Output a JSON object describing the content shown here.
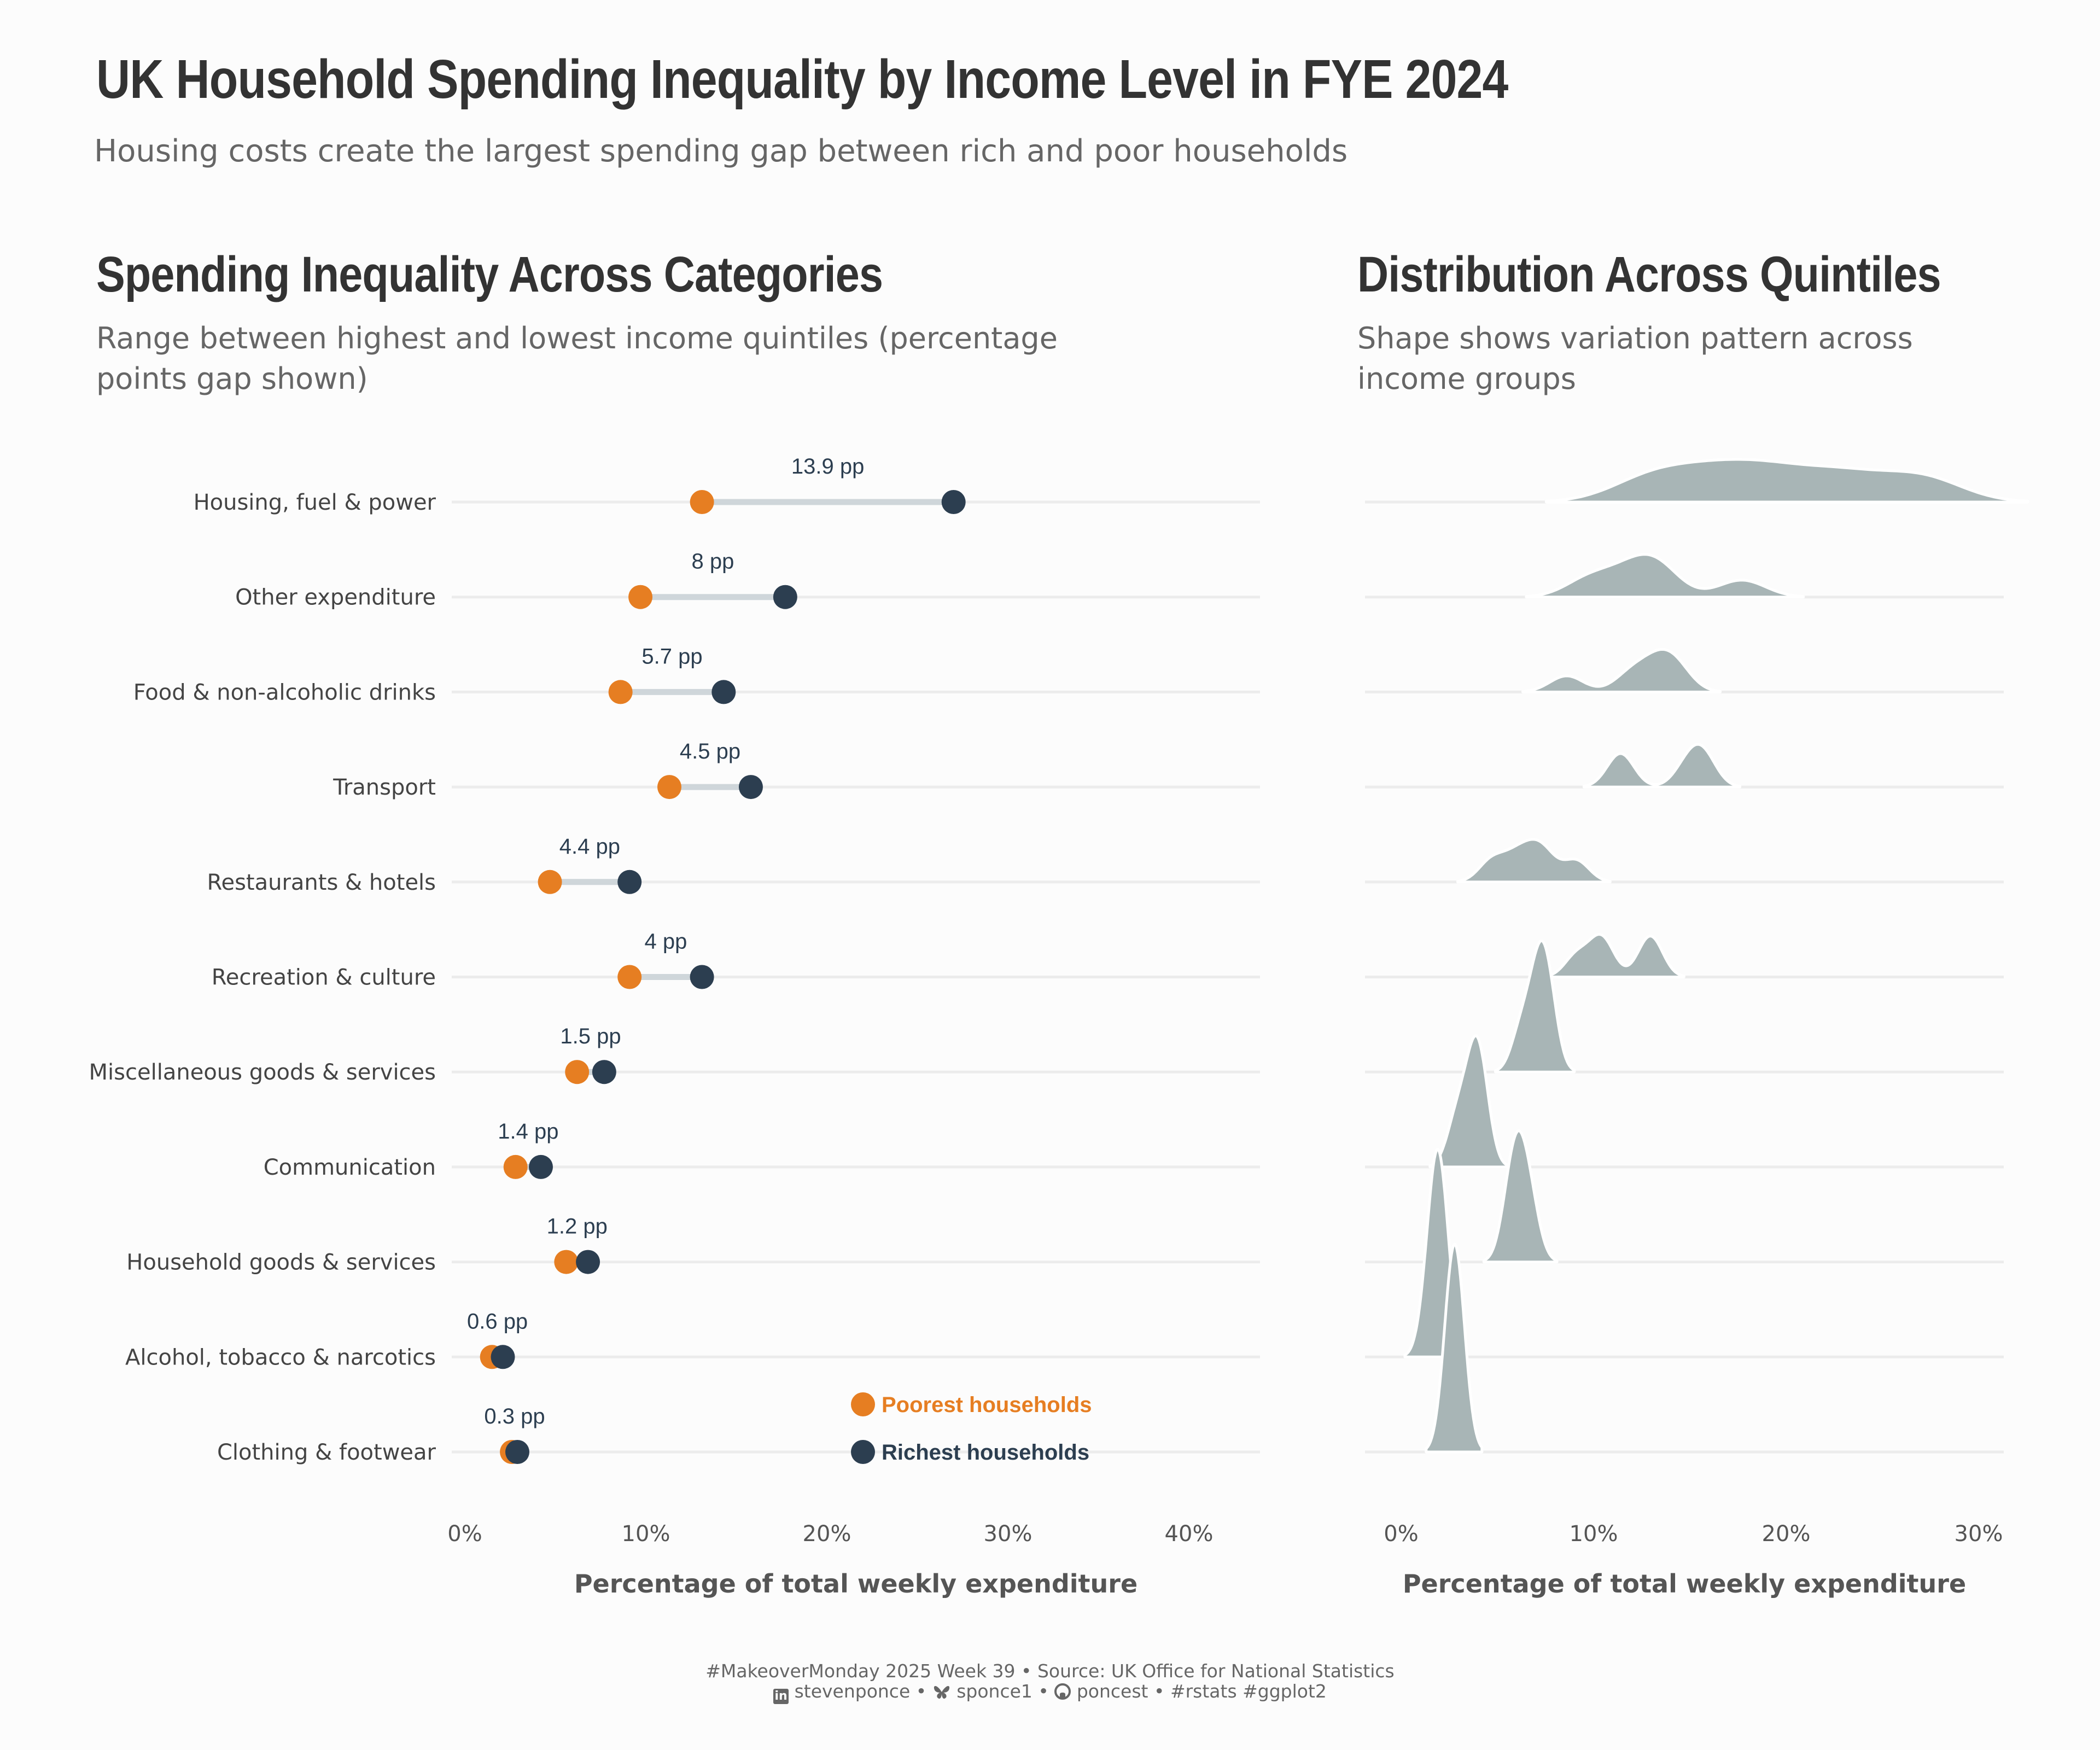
{
  "title": "UK Household Spending Inequality by Income Level in FYE 2024",
  "subtitle": "Housing costs create the largest spending gap between rich and poor households",
  "left_panel": {
    "title": "Spending Inequality Across Categories",
    "subtitle_line1": "Range between highest and lowest income quintiles (percentage",
    "subtitle_line2": "points gap shown)"
  },
  "right_panel": {
    "title": "Distribution Across Quintiles",
    "subtitle_line1": "Shape shows variation pattern across",
    "subtitle_line2": "income groups"
  },
  "colors": {
    "poorest": "#e67e22",
    "richest": "#2c3e50",
    "segment": "#cfd6da",
    "ridge": "#a8b5b6",
    "grid": "#ececec"
  },
  "legend": {
    "poorest": "Poorest households",
    "richest": "Richest households"
  },
  "caption": {
    "line1": "#MakeoverMonday 2025 Week 39 • Source: UK Office for National Statistics",
    "line2_parts": [
      "stevenponce",
      "sponce1",
      "poncest",
      "#rstats #ggplot2"
    ],
    "separator": " • ",
    "icons": [
      "linkedin-icon",
      "bluesky-icon",
      "github-icon"
    ]
  },
  "chart_data": [
    {
      "type": "dumbbell",
      "xlabel": "Percentage of total weekly expenditure",
      "xlim": [
        0,
        44
      ],
      "x_ticks": [
        0,
        10,
        20,
        30,
        40
      ],
      "x_tick_labels": [
        "0%",
        "10%",
        "20%",
        "30%",
        "40%"
      ],
      "categories": [
        "Housing, fuel & power",
        "Other expenditure",
        "Food & non-alcoholic drinks",
        "Transport",
        "Restaurants & hotels",
        "Recreation & culture",
        "Miscellaneous goods & services",
        "Communication",
        "Household goods & services",
        "Alcohol, tobacco & narcotics",
        "Clothing & footwear"
      ],
      "series": [
        {
          "name": "Poorest households",
          "values": [
            13.1,
            9.7,
            8.6,
            11.3,
            4.7,
            9.1,
            6.2,
            2.8,
            5.6,
            1.5,
            2.6
          ]
        },
        {
          "name": "Richest households",
          "values": [
            27.0,
            17.7,
            14.3,
            15.8,
            9.1,
            13.1,
            7.7,
            4.2,
            6.8,
            2.1,
            2.9
          ]
        }
      ],
      "gap_labels": [
        "13.9 pp",
        "8 pp",
        "5.7 pp",
        "4.5 pp",
        "4.4 pp",
        "4 pp",
        "1.5 pp",
        "1.4 pp",
        "1.2 pp",
        "0.6 pp",
        "0.3 pp"
      ],
      "grid": "horizontal",
      "legend_position": "bottom-right"
    },
    {
      "type": "ridgeline",
      "xlabel": "Percentage of total weekly expenditure",
      "xlim": [
        -1,
        31
      ],
      "x_ticks": [
        0,
        10,
        20,
        30
      ],
      "x_tick_labels": [
        "0%",
        "10%",
        "20%",
        "30%"
      ],
      "categories": [
        "Housing, fuel & power",
        "Other expenditure",
        "Food & non-alcoholic drinks",
        "Transport",
        "Restaurants & hotels",
        "Recreation & culture",
        "Miscellaneous goods & services",
        "Communication",
        "Household goods & services",
        "Alcohol, tobacco & narcotics",
        "Clothing & footwear"
      ],
      "quintile_values": [
        [
          13.1,
          16.4,
          19.3,
          22.9,
          27.0
        ],
        [
          9.7,
          11.5,
          13.0,
          13.3,
          17.7
        ],
        [
          8.6,
          11.9,
          13.0,
          13.8,
          14.3
        ],
        [
          11.3,
          11.5,
          14.8,
          15.5,
          15.8
        ],
        [
          4.7,
          5.9,
          6.8,
          7.5,
          9.1
        ],
        [
          9.1,
          10.2,
          10.6,
          12.8,
          13.1
        ],
        [
          6.2,
          6.9,
          7.2,
          7.5,
          7.7
        ],
        [
          2.8,
          3.4,
          3.9,
          4.0,
          4.2
        ],
        [
          5.6,
          5.9,
          6.1,
          6.4,
          6.8
        ],
        [
          1.5,
          1.8,
          2.0,
          2.0,
          2.1
        ],
        [
          2.6,
          2.7,
          2.8,
          2.9,
          2.9
        ]
      ],
      "grid": "horizontal"
    }
  ]
}
